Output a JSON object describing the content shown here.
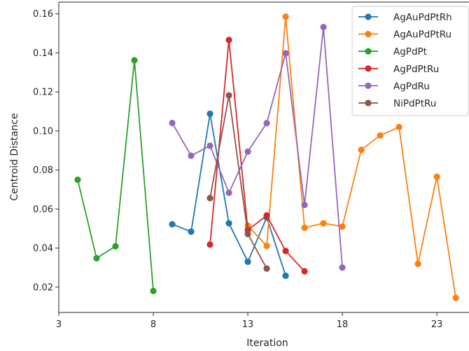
{
  "chart_data": {
    "type": "line",
    "title": "",
    "xlabel": "Iteration",
    "ylabel": "Centroid Distance",
    "xlim": [
      3,
      24.7
    ],
    "ylim": [
      0.007,
      0.166
    ],
    "xticks": [
      3,
      8,
      13,
      18,
      23
    ],
    "yticks": [
      0.02,
      0.04,
      0.06,
      0.08,
      0.1,
      0.12,
      0.14,
      0.16
    ],
    "ytick_labels": [
      "0.02",
      "0.04",
      "0.06",
      "0.08",
      "0.10",
      "0.12",
      "0.14",
      "0.16"
    ],
    "grid": false,
    "legend_position": "top-right",
    "series": [
      {
        "name": "AgAuPdPtRh",
        "color": "#1f77b4",
        "x": [
          9,
          10,
          11,
          12,
          13,
          14,
          15
        ],
        "y": [
          0.0522,
          0.0484,
          0.1088,
          0.0527,
          0.033,
          0.0557,
          0.0258
        ]
      },
      {
        "name": "AgAuPdPtRu",
        "color": "#ff7f0e",
        "x": [
          13,
          14,
          15,
          16,
          17,
          18,
          19,
          20,
          21,
          22,
          23,
          24
        ],
        "y": [
          0.0515,
          0.0411,
          0.1585,
          0.0504,
          0.0527,
          0.051,
          0.0903,
          0.0977,
          0.102,
          0.0319,
          0.0765,
          0.0145
        ]
      },
      {
        "name": "AgPdPt",
        "color": "#2ca02c",
        "x": [
          4,
          5,
          6,
          7,
          8
        ],
        "y": [
          0.075,
          0.0348,
          0.0409,
          0.1362,
          0.018
        ]
      },
      {
        "name": "AgPdPtRu",
        "color": "#d62728",
        "x": [
          11,
          12,
          13,
          14,
          15,
          16
        ],
        "y": [
          0.0418,
          0.1466,
          0.0492,
          0.0567,
          0.0385,
          0.0281
        ]
      },
      {
        "name": "AgPdRu",
        "color": "#9467bd",
        "x": [
          9,
          10,
          11,
          12,
          13,
          14,
          15,
          16,
          17,
          18
        ],
        "y": [
          0.1041,
          0.0873,
          0.0924,
          0.0683,
          0.0894,
          0.104,
          0.1398,
          0.0621,
          0.1532,
          0.03
        ]
      },
      {
        "name": "NiPdPtRu",
        "color": "#8c564b",
        "x": [
          11,
          12,
          13,
          14
        ],
        "y": [
          0.0656,
          0.1182,
          0.0472,
          0.0295
        ]
      }
    ]
  }
}
